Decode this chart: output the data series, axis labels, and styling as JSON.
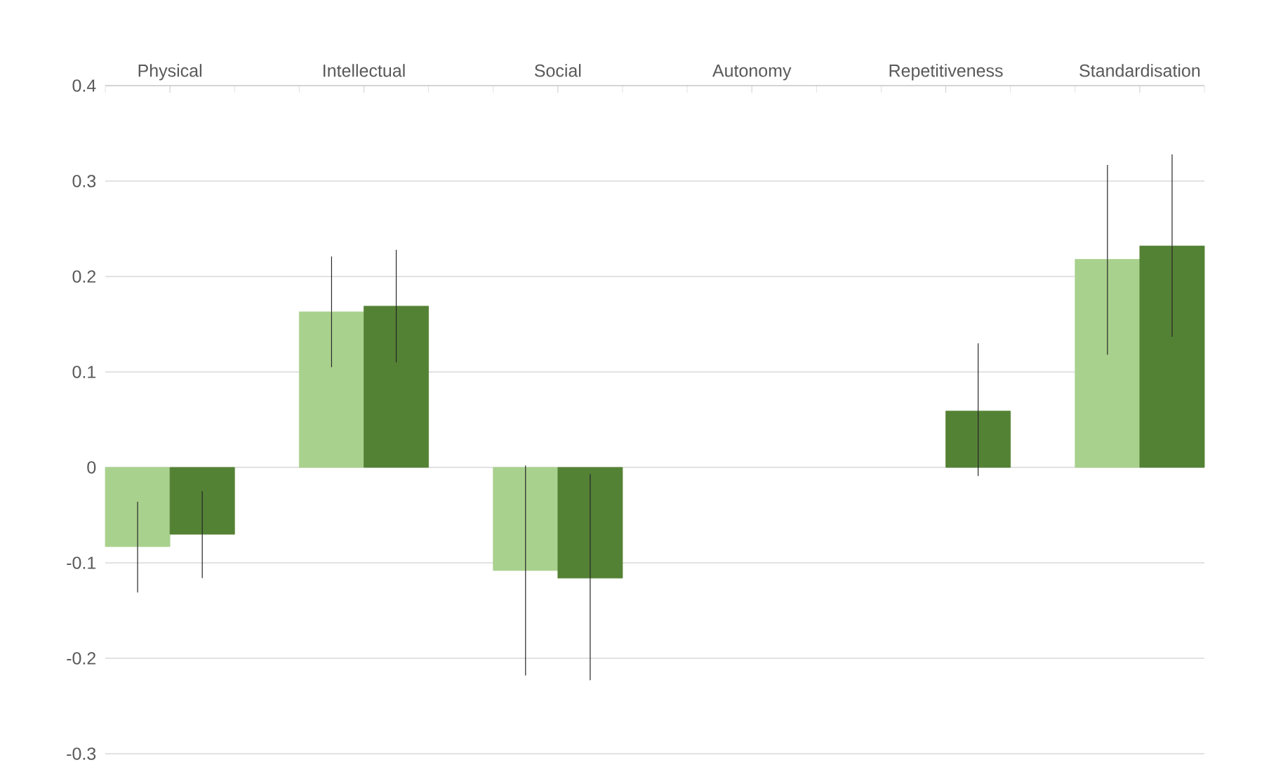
{
  "chart_data": {
    "type": "bar",
    "categories": [
      "Physical",
      "Intellectual",
      "Social",
      "Autonomy",
      "Repetitiveness",
      "Standardisation"
    ],
    "series": [
      {
        "color": "#a9d18e",
        "values": [
          -0.083,
          0.163,
          -0.108,
          null,
          null,
          0.218
        ],
        "errors": [
          [
            -0.131,
            -0.036
          ],
          [
            0.105,
            0.221
          ],
          [
            -0.218,
            0.002
          ],
          null,
          null,
          [
            0.118,
            0.317
          ]
        ]
      },
      {
        "color": "#548235",
        "values": [
          -0.07,
          0.169,
          -0.116,
          null,
          0.059,
          0.232
        ],
        "errors": [
          [
            -0.116,
            -0.025
          ],
          [
            0.11,
            0.228
          ],
          [
            -0.223,
            -0.007
          ],
          null,
          [
            -0.009,
            0.13
          ],
          [
            0.137,
            0.328
          ]
        ]
      }
    ],
    "ylim": [
      -0.3,
      0.4
    ],
    "yticks": [
      -0.3,
      -0.2,
      -0.1,
      0,
      0.1,
      0.2,
      0.3,
      0.4
    ],
    "grid": "y"
  }
}
